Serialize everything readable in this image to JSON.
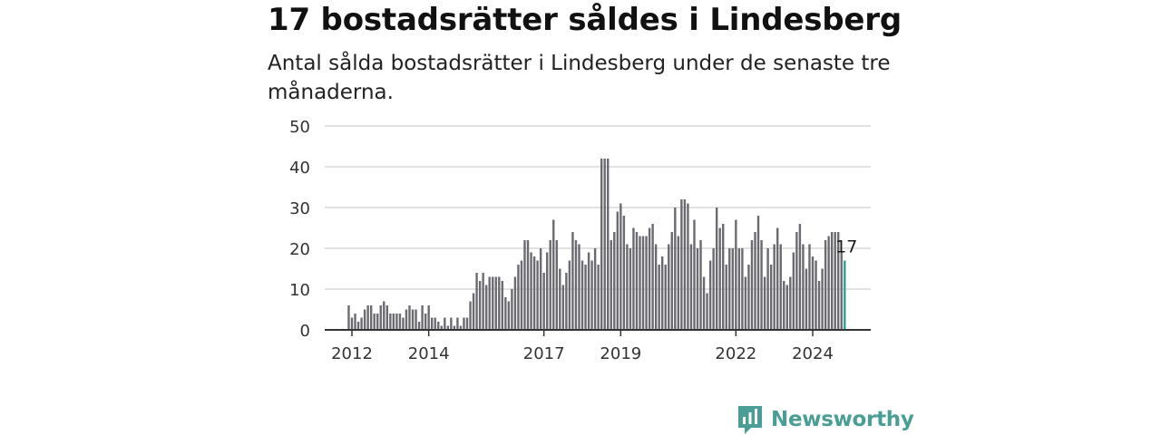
{
  "header": {
    "title": "17 bostadsrätter såldes i Lindesberg",
    "subtitle": "Antal sålda bostadsrätter i Lindesberg under de senaste tre månaderna."
  },
  "logo": {
    "text": "Newsworthy",
    "icon": "newsworthy-chart-icon"
  },
  "colors": {
    "bar": "#6b6a70",
    "highlight": "#2aa198",
    "grid": "#d9d9d9",
    "axis": "#333333",
    "logo": "#4a9e96"
  },
  "chart_data": {
    "type": "bar",
    "title": "",
    "xlabel": "",
    "ylabel": "",
    "ylim": [
      0,
      50
    ],
    "yticks": [
      "0",
      "10",
      "20",
      "30",
      "40",
      "50"
    ],
    "xticks": [
      "2012",
      "2014",
      "2017",
      "2019",
      "2022",
      "2024"
    ],
    "grid": true,
    "series": [
      {
        "start": "2011-12",
        "values": [
          6,
          3,
          4,
          2,
          3,
          5,
          6,
          6,
          4,
          4,
          6,
          7,
          6,
          4,
          4,
          4,
          4,
          3,
          5,
          6,
          5,
          5,
          2,
          6,
          4,
          6,
          3,
          3,
          2,
          1,
          3,
          1,
          3,
          1,
          3,
          1,
          3,
          3,
          7,
          9,
          14,
          12,
          14,
          11,
          13,
          13,
          13,
          13,
          12,
          8,
          7,
          10,
          13,
          16,
          17,
          22,
          22,
          19,
          18,
          17,
          20,
          14,
          19,
          22,
          27,
          22,
          15,
          11,
          14,
          17,
          24,
          22,
          21,
          17,
          16,
          19,
          17,
          20,
          16,
          42,
          42,
          42,
          22,
          24,
          29,
          31,
          28,
          21,
          20,
          25,
          24,
          23,
          23,
          23,
          25,
          26,
          21,
          16,
          18,
          16,
          21,
          24,
          30,
          23,
          32,
          32,
          31,
          21,
          27,
          20,
          22,
          13,
          9,
          17,
          20,
          30,
          25,
          26,
          16,
          20,
          20,
          27,
          20,
          20,
          13,
          16,
          22,
          24,
          28,
          22,
          13,
          20,
          16,
          21,
          25,
          21,
          12,
          11,
          13,
          19,
          24,
          26,
          21,
          15,
          21,
          18,
          17,
          12,
          15,
          22,
          23,
          24,
          24,
          24,
          19,
          17
        ],
        "highlight_last": 1,
        "last_value_label": "17"
      }
    ]
  }
}
